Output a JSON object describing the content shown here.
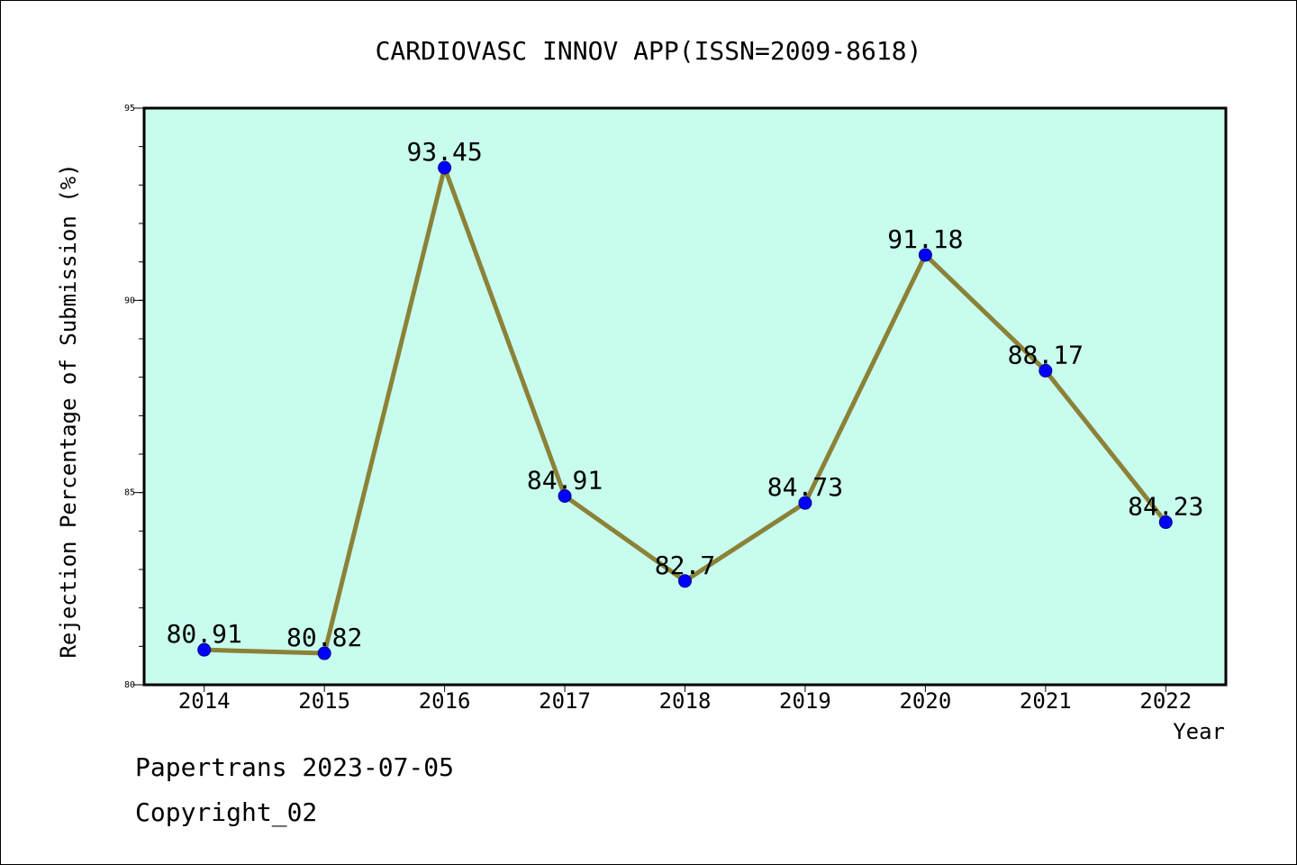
{
  "chart_data": {
    "type": "line",
    "title": "CARDIOVASC INNOV APP(ISSN=2009-8618)",
    "xlabel": "Year",
    "ylabel": "Rejection Percentage of Submission (%)",
    "categories": [
      "2014",
      "2015",
      "2016",
      "2017",
      "2018",
      "2019",
      "2020",
      "2021",
      "2022"
    ],
    "series": [
      {
        "values": [
          80.91,
          80.82,
          93.45,
          84.91,
          82.7,
          84.73,
          91.18,
          88.17,
          84.23
        ],
        "data_labels": [
          "80.91",
          "80.82",
          "93.45",
          "84.91",
          "82.7",
          "84.73",
          "91.18",
          "88.17",
          "84.23"
        ]
      }
    ],
    "ylim": [
      80,
      95
    ],
    "yticks": [
      80,
      85,
      90,
      95
    ],
    "yminor_step": 1,
    "grid": false,
    "colors": {
      "plot_bg": "#c8fcee",
      "line": "#8b8237",
      "marker": "#0000ff"
    }
  },
  "footer": {
    "line1": "Papertrans 2023-07-05",
    "line2": "Copyright_02"
  }
}
